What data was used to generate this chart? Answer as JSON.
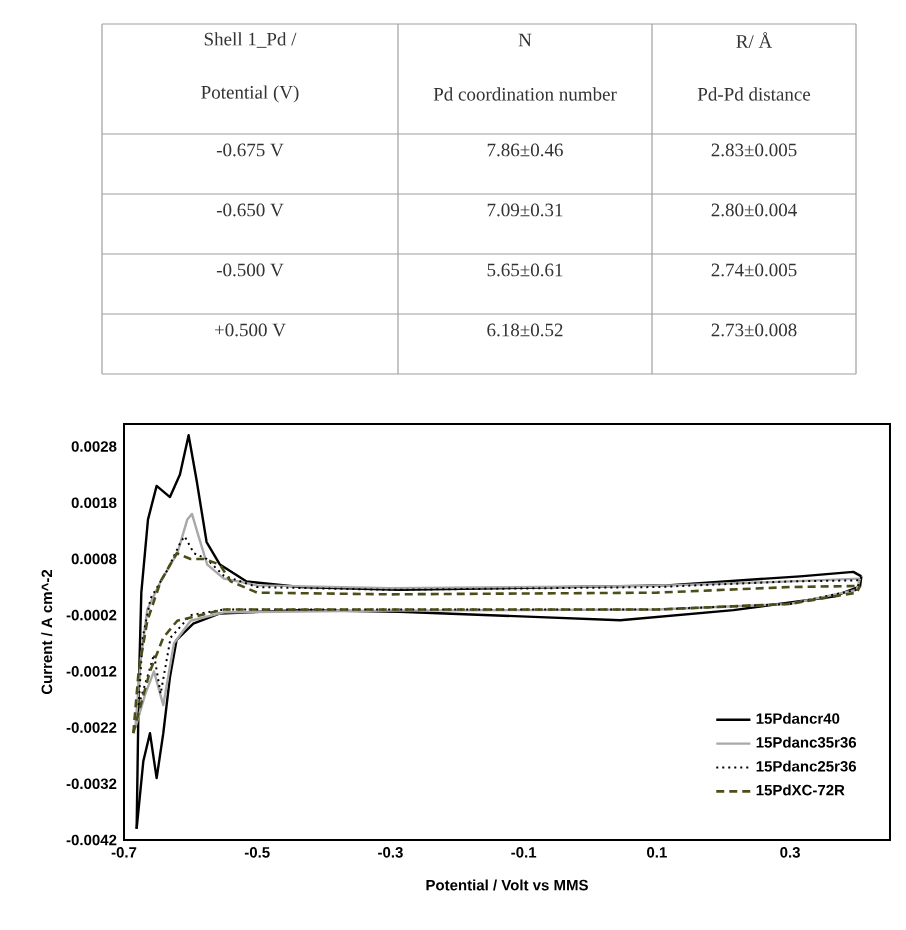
{
  "chart_data": [
    {
      "type": "other",
      "annotations": [
        "Shell 1_Pd /",
        "N",
        "R/ Å",
        "Potential (V)",
        "Pd coordination number",
        "Pd-Pd distance",
        "-0.675 V",
        "7.86±0.46",
        "2.83±0.005",
        "-0.650 V",
        "7.09±0.31",
        "2.80±0.004",
        "-0.500 V",
        "5.65±0.61",
        "2.74±0.005",
        "+0.500 V",
        "6.18±0.52",
        "2.73±0.008"
      ]
    },
    {
      "type": "line",
      "xlabel": "Potential / Volt vs MMS",
      "ylabel": "Current / A cm^-2",
      "xlim": [
        -0.7,
        0.45
      ],
      "ylim": [
        -0.0042,
        0.0032
      ],
      "xticks": [
        -0.7,
        -0.5,
        -0.3,
        -0.1,
        0.1,
        0.3
      ],
      "yticks": [
        -0.0042,
        -0.0032,
        -0.0022,
        -0.0012,
        -0.0002,
        0.0008,
        0.0018,
        0.0028
      ],
      "legend": "bottom right",
      "series": [
        {
          "name": "15Pdancr40",
          "color": "#000000",
          "line_style": "solid",
          "x": [
            -0.681,
            -0.678,
            -0.674,
            -0.664,
            -0.651,
            -0.631,
            -0.616,
            -0.603,
            -0.591,
            -0.576,
            -0.556,
            -0.516,
            -0.436,
            -0.286,
            0.115,
            0.315,
            0.395,
            0.407
          ],
          "values": [
            -0.004,
            -0.0016,
            0.0002,
            0.0015,
            0.0021,
            0.0019,
            0.0023,
            0.003,
            0.0022,
            0.0011,
            0.0007,
            0.0004,
            0.0003,
            0.00025,
            0.00033,
            0.00049,
            0.00057,
            0.00049
          ]
        },
        {
          "color": "#000000",
          "line_style": "solid",
          "x": [
            -0.681,
            -0.671,
            -0.661,
            -0.651,
            -0.641,
            -0.631,
            -0.621,
            -0.596,
            -0.556,
            -0.436,
            -0.286,
            -0.085,
            0.045,
            0.215,
            0.365,
            0.405,
            0.407
          ],
          "values": [
            -0.004,
            -0.0028,
            -0.0023,
            -0.0031,
            -0.0023,
            -0.0013,
            -0.00064,
            -0.00035,
            -0.00017,
            -0.00011,
            -0.00014,
            -0.00023,
            -0.00029,
            -0.00011,
            0.00013,
            0.00031,
            0.00049
          ]
        },
        {
          "name": "15Pdanc35r36",
          "color": "#a8a8a8",
          "line_style": "solid",
          "x": [
            -0.683,
            -0.675,
            -0.665,
            -0.645,
            -0.62,
            -0.605,
            -0.598,
            -0.588,
            -0.575,
            -0.55,
            -0.5,
            -0.3,
            0.1,
            0.3,
            0.405
          ],
          "values": [
            -0.0022,
            -0.001,
            -0.0001,
            0.0004,
            0.0009,
            0.0015,
            0.0016,
            0.0012,
            0.0007,
            0.00045,
            0.00033,
            0.00028,
            0.00032,
            0.0004,
            0.00045
          ]
        },
        {
          "color": "#a8a8a8",
          "line_style": "solid",
          "x": [
            -0.683,
            -0.668,
            -0.655,
            -0.641,
            -0.625,
            -0.6,
            -0.55,
            -0.3,
            0.1,
            0.3,
            0.4,
            0.405
          ],
          "values": [
            -0.0022,
            -0.0016,
            -0.0012,
            -0.0018,
            -0.0007,
            -0.0003,
            -0.00015,
            -0.00012,
            -0.0001,
            0.0,
            0.00025,
            0.00045
          ]
        },
        {
          "name": "15Pdanc25r36",
          "color": "#000000",
          "line_style": "dotted",
          "x": [
            -0.678,
            -0.672,
            -0.66,
            -0.635,
            -0.615,
            -0.609,
            -0.595,
            -0.576,
            -0.55,
            -0.5,
            -0.3,
            0.1,
            0.3,
            0.405
          ],
          "values": [
            -0.0018,
            -0.0006,
            0.0001,
            0.0006,
            0.0011,
            0.0012,
            0.0009,
            0.0008,
            0.0005,
            0.0003,
            0.00025,
            0.0003,
            0.0004,
            0.00042
          ]
        },
        {
          "color": "#000000",
          "line_style": "dotted",
          "x": [
            -0.678,
            -0.665,
            -0.655,
            -0.645,
            -0.63,
            -0.6,
            -0.55,
            -0.3,
            0.1,
            0.3,
            0.4,
            0.405
          ],
          "values": [
            -0.0018,
            -0.0013,
            -0.0009,
            -0.0016,
            -0.0006,
            -0.0002,
            -0.0001,
            -0.0001,
            -0.0001,
            0.0,
            0.00025,
            0.00042
          ]
        },
        {
          "name": "15PdXC-72R",
          "color": "#4d4d1a",
          "line_style": "dashed",
          "x": [
            -0.686,
            -0.678,
            -0.665,
            -0.645,
            -0.621,
            -0.6,
            -0.58,
            -0.556,
            -0.54,
            -0.5,
            -0.3,
            0.1,
            0.3,
            0.405
          ],
          "values": [
            -0.0023,
            -0.0012,
            -0.0003,
            0.0004,
            0.0009,
            0.0008,
            0.0008,
            0.0007,
            0.0004,
            0.0002,
            0.00017,
            0.0002,
            0.0003,
            0.00032
          ]
        },
        {
          "color": "#4d4d1a",
          "line_style": "dashed",
          "x": [
            -0.686,
            -0.675,
            -0.661,
            -0.641,
            -0.62,
            -0.55,
            -0.3,
            0.1,
            0.3,
            0.4,
            0.405
          ],
          "values": [
            -0.0023,
            -0.0018,
            -0.0012,
            -0.0006,
            -0.0003,
            -0.0001,
            -0.0001,
            -0.0001,
            0.0,
            0.0002,
            0.00032
          ]
        }
      ]
    }
  ]
}
